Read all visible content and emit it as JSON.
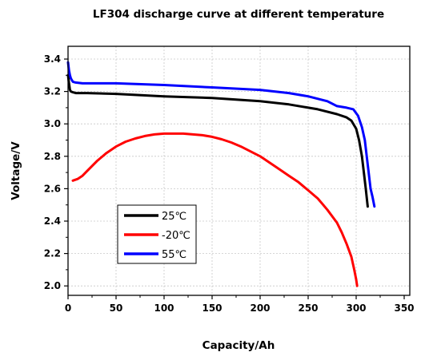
{
  "chart_data": {
    "type": "line",
    "title": "LF304 discharge curve at different temperature",
    "xlabel": "Capacity/Ah",
    "ylabel": "Voltage/V",
    "xlim": [
      0,
      350
    ],
    "ylim": [
      1.9,
      3.45
    ],
    "xticks": [
      0,
      50,
      100,
      150,
      200,
      250,
      300,
      350
    ],
    "xtick_labels": [
      "0",
      "50",
      "100",
      "150",
      "200",
      "250",
      "300",
      "350"
    ],
    "yticks": [
      2.0,
      2.2,
      2.4,
      2.6,
      2.8,
      3.0,
      3.2,
      3.4
    ],
    "ytick_labels": [
      "2.0",
      "2.2",
      "2.4",
      "2.6",
      "2.8",
      "3.0",
      "3.2",
      "3.4"
    ],
    "grid": true,
    "legend_position": "lower-left",
    "series": [
      {
        "name": "25℃",
        "color": "#000000",
        "x": [
          0,
          1,
          2,
          3,
          5,
          8,
          20,
          50,
          100,
          150,
          200,
          230,
          260,
          280,
          290,
          295,
          300,
          303,
          306,
          308,
          310,
          312
        ],
        "y": [
          3.3,
          3.25,
          3.21,
          3.2,
          3.195,
          3.19,
          3.19,
          3.185,
          3.17,
          3.16,
          3.14,
          3.12,
          3.09,
          3.06,
          3.04,
          3.02,
          2.97,
          2.9,
          2.8,
          2.7,
          2.6,
          2.49
        ]
      },
      {
        "name": "-20℃",
        "color": "#ff0000",
        "x": [
          5,
          10,
          15,
          20,
          30,
          40,
          50,
          60,
          70,
          80,
          90,
          100,
          110,
          120,
          130,
          140,
          150,
          160,
          170,
          180,
          190,
          200,
          210,
          220,
          230,
          240,
          250,
          260,
          270,
          280,
          285,
          290,
          295,
          298,
          300,
          301
        ],
        "y": [
          2.65,
          2.66,
          2.68,
          2.71,
          2.77,
          2.82,
          2.86,
          2.89,
          2.91,
          2.925,
          2.935,
          2.94,
          2.94,
          2.94,
          2.935,
          2.93,
          2.92,
          2.905,
          2.885,
          2.86,
          2.83,
          2.8,
          2.76,
          2.72,
          2.68,
          2.64,
          2.59,
          2.54,
          2.47,
          2.39,
          2.33,
          2.26,
          2.18,
          2.1,
          2.04,
          2.0
        ]
      },
      {
        "name": "55℃",
        "color": "#0000ff",
        "x": [
          0,
          1,
          2,
          3,
          5,
          8,
          15,
          30,
          50,
          100,
          150,
          200,
          230,
          250,
          270,
          280,
          290,
          297,
          302,
          306,
          309,
          311,
          313,
          315,
          317,
          319
        ],
        "y": [
          3.38,
          3.33,
          3.3,
          3.28,
          3.26,
          3.255,
          3.25,
          3.25,
          3.25,
          3.24,
          3.225,
          3.21,
          3.19,
          3.17,
          3.14,
          3.11,
          3.1,
          3.09,
          3.05,
          2.98,
          2.9,
          2.8,
          2.7,
          2.6,
          2.55,
          2.49
        ]
      }
    ]
  }
}
